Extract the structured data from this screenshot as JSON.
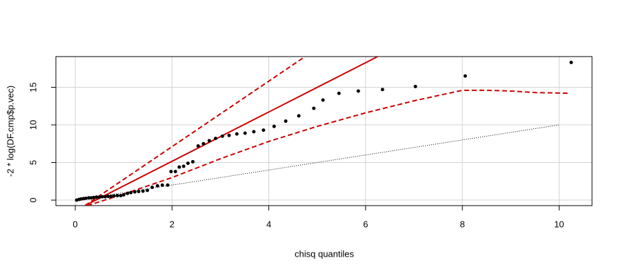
{
  "chart_data": {
    "type": "scatter",
    "xlabel": "chisq quantiles",
    "ylabel": "-2 * log(DF.cmp$p.vec)",
    "xlim": [
      -0.4,
      10.68
    ],
    "ylim": [
      -0.73,
      19.08
    ],
    "xticks": [
      0,
      2,
      4,
      6,
      8,
      10
    ],
    "yticks": [
      0,
      5,
      10,
      15
    ],
    "grid": true,
    "color": "#000000",
    "x": [
      0.03,
      0.08,
      0.12,
      0.17,
      0.22,
      0.28,
      0.33,
      0.38,
      0.44,
      0.5,
      0.56,
      0.62,
      0.68,
      0.74,
      0.8,
      0.87,
      0.94,
      1.0,
      1.08,
      1.15,
      1.23,
      1.31,
      1.4,
      1.49,
      1.59,
      1.7,
      1.8,
      1.91,
      1.98,
      2.07,
      2.15,
      2.24,
      2.33,
      2.43,
      2.54,
      2.65,
      2.77,
      2.9,
      3.04,
      3.18,
      3.34,
      3.51,
      3.69,
      3.89,
      4.11,
      4.35,
      4.62,
      4.93,
      5.12,
      5.45,
      5.85,
      6.35,
      7.03,
      8.06,
      10.25
    ],
    "values": [
      0,
      0.1,
      0.15,
      0.2,
      0.25,
      0.3,
      0.3,
      0.35,
      0.4,
      0.4,
      0.45,
      0.45,
      0.5,
      0.5,
      0.55,
      0.6,
      0.6,
      0.7,
      0.9,
      1.0,
      1.1,
      1.15,
      1.2,
      1.3,
      1.7,
      1.9,
      2.0,
      2.0,
      3.8,
      3.8,
      4.4,
      4.5,
      4.9,
      5.1,
      7.2,
      7.5,
      7.9,
      8.2,
      8.5,
      8.6,
      8.8,
      8.9,
      9.1,
      9.3,
      9.8,
      10.5,
      11.2,
      12.2,
      13.3,
      14.2,
      14.5,
      14.7,
      15.1,
      16.5,
      18.3
    ],
    "reference_lines": [
      {
        "color": "#000000",
        "style": "dotted",
        "x": [
          0,
          10
        ],
        "values": [
          0,
          10
        ]
      },
      {
        "color": "#cc0000",
        "style": "solid",
        "x": [
          0.2,
          6.25
        ],
        "values": [
          -0.73,
          19.08
        ]
      },
      {
        "color": "#cc0000",
        "style": "dashed",
        "x": [
          0.2,
          4.75
        ],
        "values": [
          -0.73,
          19.08
        ]
      },
      {
        "color": "#cc0000",
        "style": "dashed",
        "x": [
          0.25,
          1,
          2,
          3,
          4,
          5,
          6,
          7,
          8,
          8.5,
          9,
          9.5,
          10.2
        ],
        "values": [
          -0.73,
          0.8,
          3,
          5.5,
          7.8,
          9.8,
          11.6,
          13.2,
          14.6,
          14.6,
          14.5,
          14.3,
          14.2
        ]
      }
    ]
  }
}
